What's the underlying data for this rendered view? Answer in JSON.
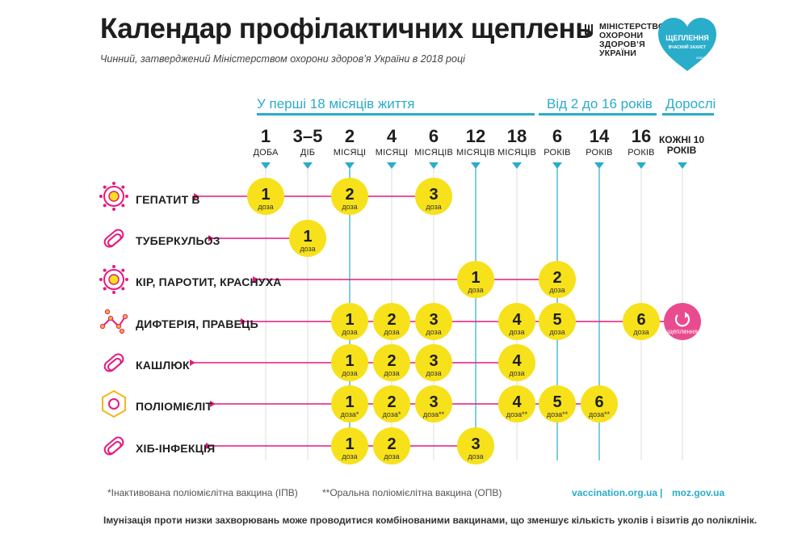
{
  "header": {
    "title": "Календар профілактичних щеплень",
    "subtitle": "Чинний, затверджений Міністерством охорони здоров’я України в 2018 році",
    "ministry_lines": [
      "МІНІСТЕРСТВО",
      "ОХОРОНИ",
      "ЗДОРОВ’Я",
      "УКРАЇНИ"
    ],
    "badge_line1": "ЩЕПЛЕННЯ",
    "badge_line2": "ВЧАСНИЙ ЗАХИСТ",
    "badge_small": "unicef"
  },
  "groups": [
    {
      "label": "У перші 18 місяців життя"
    },
    {
      "label": "Від 2 до 16 років"
    },
    {
      "label": "Дорослі"
    }
  ],
  "columns": [
    {
      "num": "1",
      "unit": "ДОБА"
    },
    {
      "num": "3–5",
      "unit": "ДІБ"
    },
    {
      "num": "2",
      "unit": "МІСЯЦІ"
    },
    {
      "num": "4",
      "unit": "МІСЯЦІ"
    },
    {
      "num": "6",
      "unit": "МІСЯЦІВ"
    },
    {
      "num": "12",
      "unit": "МІСЯЦІВ"
    },
    {
      "num": "18",
      "unit": "МІСЯЦІВ"
    },
    {
      "num": "6",
      "unit": "РОКІВ"
    },
    {
      "num": "14",
      "unit": "РОКІВ"
    },
    {
      "num": "16",
      "unit": "РОКІВ"
    },
    {
      "num": "",
      "unit": "КОЖНІ 10 РОКІВ"
    }
  ],
  "dose_label": "доза",
  "booster_label": "щеплення",
  "rows": [
    {
      "label": "ГЕПАТИТ В",
      "icon": "hepatitis-virus-icon",
      "doses": [
        {
          "col": 0,
          "n": "1",
          "mark": ""
        },
        {
          "col": 2,
          "n": "2",
          "mark": ""
        },
        {
          "col": 4,
          "n": "3",
          "mark": ""
        }
      ]
    },
    {
      "label": "ТУБЕРКУЛЬОЗ",
      "icon": "tuberculosis-bacteria-icon",
      "doses": [
        {
          "col": 1,
          "n": "1",
          "mark": ""
        }
      ]
    },
    {
      "label": "КІР, ПАРОТИТ, КРАСНУХА",
      "icon": "measles-virus-icon",
      "doses": [
        {
          "col": 5,
          "n": "1",
          "mark": ""
        },
        {
          "col": 7,
          "n": "2",
          "mark": ""
        }
      ]
    },
    {
      "label": "ДИФТЕРІЯ, ПРАВЕЦЬ",
      "icon": "diphtheria-bacteria-icon",
      "doses": [
        {
          "col": 2,
          "n": "1",
          "mark": ""
        },
        {
          "col": 3,
          "n": "2",
          "mark": ""
        },
        {
          "col": 4,
          "n": "3",
          "mark": ""
        },
        {
          "col": 6,
          "n": "4",
          "mark": ""
        },
        {
          "col": 7,
          "n": "5",
          "mark": ""
        },
        {
          "col": 9,
          "n": "6",
          "mark": ""
        }
      ],
      "booster_col": 10
    },
    {
      "label": "КАШЛЮК",
      "icon": "pertussis-bacteria-icon",
      "doses": [
        {
          "col": 2,
          "n": "1",
          "mark": ""
        },
        {
          "col": 3,
          "n": "2",
          "mark": ""
        },
        {
          "col": 4,
          "n": "3",
          "mark": ""
        },
        {
          "col": 6,
          "n": "4",
          "mark": ""
        }
      ]
    },
    {
      "label": "ПОЛІОМІЄЛІТ",
      "icon": "polio-virus-icon",
      "doses": [
        {
          "col": 2,
          "n": "1",
          "mark": "*"
        },
        {
          "col": 3,
          "n": "2",
          "mark": "*"
        },
        {
          "col": 4,
          "n": "3",
          "mark": "**"
        },
        {
          "col": 6,
          "n": "4",
          "mark": "**"
        },
        {
          "col": 7,
          "n": "5",
          "mark": "**"
        },
        {
          "col": 8,
          "n": "6",
          "mark": "**"
        }
      ]
    },
    {
      "label": "ХІБ-ІНФЕКЦІЯ",
      "icon": "hib-bacteria-icon",
      "doses": [
        {
          "col": 2,
          "n": "1",
          "mark": ""
        },
        {
          "col": 3,
          "n": "2",
          "mark": ""
        },
        {
          "col": 5,
          "n": "3",
          "mark": ""
        }
      ]
    }
  ],
  "colors": {
    "accent": "#2aaccb",
    "dose": "#f7e11a",
    "line": "#e6197e",
    "booster": "#ea4b8f",
    "grid": "#dddddd"
  },
  "footer": {
    "note_ipv": "*Інактивована поліомієлітна вакцина (ІПВ)",
    "note_opv": "**Оральна поліомієлітна вакцина (ОПВ)",
    "link1": "vaccination.org.ua",
    "separator": "|",
    "link2": "moz.gov.ua",
    "main": "Імунізація проти низки захворювань може проводитися комбінованими вакцинами, що зменшує кількість уколів і візитів до поліклінік."
  }
}
